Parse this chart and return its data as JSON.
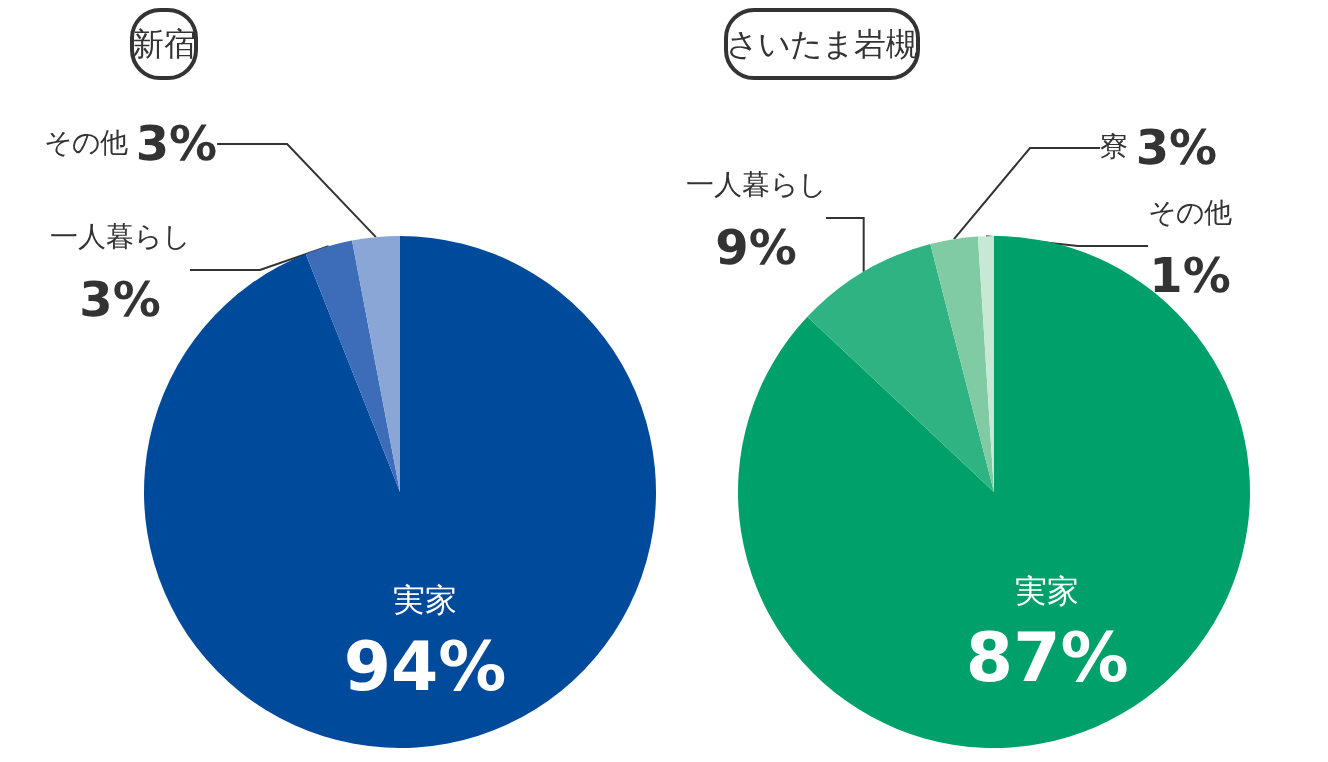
{
  "chart_data": [
    {
      "type": "pie",
      "title": "新宿",
      "categories": [
        "実家",
        "一人暮らし",
        "その他"
      ],
      "values": [
        94,
        3,
        3
      ],
      "colors": [
        "#004a9c",
        "#3d6cb8",
        "#8aa6d6"
      ],
      "value_labels": [
        "94%",
        "3%",
        "3%"
      ]
    },
    {
      "type": "pie",
      "title": "さいたま岩槻",
      "categories": [
        "実家",
        "一人暮らし",
        "寮",
        "その他"
      ],
      "values": [
        87,
        9,
        3,
        1
      ],
      "colors": [
        "#00a06a",
        "#2fb383",
        "#80cba3",
        "#c6e8d4"
      ],
      "value_labels": [
        "87%",
        "9%",
        "3%",
        "1%"
      ]
    }
  ]
}
